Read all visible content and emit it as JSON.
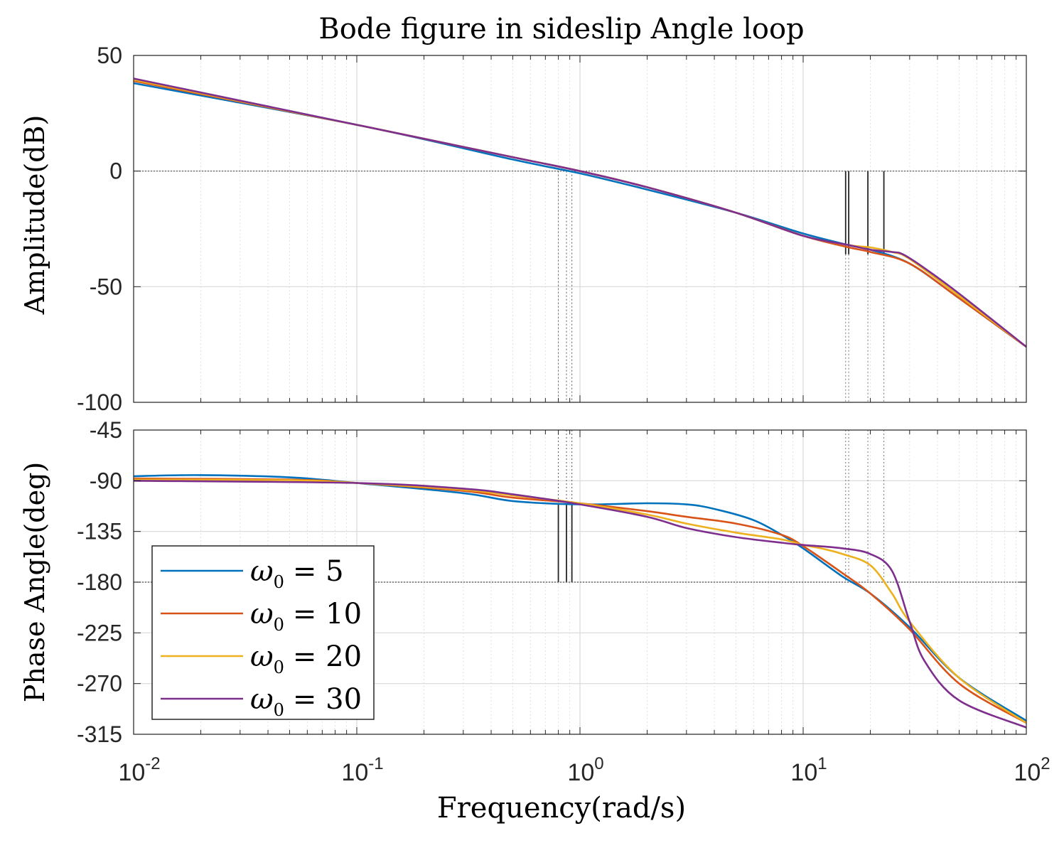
{
  "chart_data": {
    "type": "line",
    "title": "Bode figure in sideslip Angle loop",
    "xlabel": "Frequency(rad/s)",
    "xscale": "log",
    "xlim": [
      0.01,
      100
    ],
    "x_tick_labels": [
      {
        "base": "10",
        "exp": "-2"
      },
      {
        "base": "10",
        "exp": "-1"
      },
      {
        "base": "10",
        "exp": "0"
      },
      {
        "base": "10",
        "exp": "1"
      },
      {
        "base": "10",
        "exp": "2"
      }
    ],
    "grid": true,
    "legend_position": "lower-left of phase plot",
    "series_names": [
      "ω0 = 5",
      "ω0 = 10",
      "ω0 = 20",
      "ω0 = 30"
    ],
    "legend": [
      {
        "label": "ω",
        "sub": "0",
        "value": "= 5"
      },
      {
        "label": "ω",
        "sub": "0",
        "value": "= 10"
      },
      {
        "label": "ω",
        "sub": "0",
        "value": "= 20"
      },
      {
        "label": "ω",
        "sub": "0",
        "value": "= 30"
      }
    ],
    "colors": [
      "#0072bd",
      "#d95319",
      "#edb120",
      "#7e2f8e"
    ],
    "magnitude": {
      "ylabel": "Amplitude(dB)",
      "ylim": [
        -100,
        50
      ],
      "yticks": [
        "50",
        "0",
        "-50",
        "-100"
      ],
      "series": [
        {
          "name": "ω0 = 5",
          "points": [
            [
              0.01,
              38
            ],
            [
              0.1,
              20
            ],
            [
              0.5,
              5
            ],
            [
              1,
              -1
            ],
            [
              2,
              -8
            ],
            [
              5,
              -18
            ],
            [
              10,
              -27
            ],
            [
              16,
              -32
            ],
            [
              20,
              -34
            ],
            [
              30,
              -40
            ],
            [
              50,
              -55
            ],
            [
              100,
              -76
            ]
          ]
        },
        {
          "name": "ω0 = 10",
          "points": [
            [
              0.01,
              39
            ],
            [
              0.1,
              20
            ],
            [
              0.5,
              6
            ],
            [
              1,
              0
            ],
            [
              2,
              -7
            ],
            [
              5,
              -18
            ],
            [
              10,
              -28
            ],
            [
              16,
              -33
            ],
            [
              20,
              -35
            ],
            [
              30,
              -40
            ],
            [
              50,
              -55
            ],
            [
              100,
              -76
            ]
          ]
        },
        {
          "name": "ω0 = 20",
          "points": [
            [
              0.01,
              39.5
            ],
            [
              0.1,
              20
            ],
            [
              0.5,
              6
            ],
            [
              1,
              0
            ],
            [
              2,
              -7
            ],
            [
              5,
              -18
            ],
            [
              10,
              -28
            ],
            [
              16,
              -32
            ],
            [
              20,
              -33
            ],
            [
              25,
              -35
            ],
            [
              30,
              -38
            ],
            [
              50,
              -54
            ],
            [
              100,
              -76
            ]
          ]
        },
        {
          "name": "ω0 = 30",
          "points": [
            [
              0.01,
              40
            ],
            [
              0.1,
              20
            ],
            [
              0.5,
              6
            ],
            [
              1,
              0
            ],
            [
              2,
              -7
            ],
            [
              5,
              -18
            ],
            [
              10,
              -28
            ],
            [
              16,
              -32
            ],
            [
              20,
              -34
            ],
            [
              25,
              -35
            ],
            [
              28,
              -36
            ],
            [
              35,
              -42
            ],
            [
              50,
              -53
            ],
            [
              100,
              -76
            ]
          ]
        }
      ]
    },
    "phase": {
      "ylabel": "Phase Angle(deg)",
      "ylim": [
        -315,
        -45
      ],
      "yticks": [
        "-45",
        "-90",
        "-135",
        "-180",
        "-225",
        "-270",
        "-315"
      ],
      "series": [
        {
          "name": "ω0 = 5",
          "points": [
            [
              0.01,
              -86
            ],
            [
              0.02,
              -85
            ],
            [
              0.05,
              -87
            ],
            [
              0.1,
              -92
            ],
            [
              0.3,
              -101
            ],
            [
              0.5,
              -108
            ],
            [
              1,
              -111
            ],
            [
              2,
              -110
            ],
            [
              3,
              -111
            ],
            [
              4,
              -115
            ],
            [
              6,
              -125
            ],
            [
              8,
              -138
            ],
            [
              10,
              -150
            ],
            [
              15,
              -175
            ],
            [
              20,
              -190
            ],
            [
              30,
              -220
            ],
            [
              50,
              -265
            ],
            [
              100,
              -303
            ]
          ]
        },
        {
          "name": "ω0 = 10",
          "points": [
            [
              0.01,
              -88
            ],
            [
              0.05,
              -89
            ],
            [
              0.1,
              -92
            ],
            [
              0.3,
              -99
            ],
            [
              0.5,
              -105
            ],
            [
              1,
              -110
            ],
            [
              2,
              -117
            ],
            [
              3,
              -122
            ],
            [
              5,
              -128
            ],
            [
              8,
              -138
            ],
            [
              10,
              -148
            ],
            [
              15,
              -172
            ],
            [
              20,
              -190
            ],
            [
              30,
              -222
            ],
            [
              50,
              -270
            ],
            [
              100,
              -305
            ]
          ]
        },
        {
          "name": "ω0 = 20",
          "points": [
            [
              0.01,
              -89
            ],
            [
              0.05,
              -89.5
            ],
            [
              0.1,
              -92
            ],
            [
              0.3,
              -98
            ],
            [
              0.5,
              -103
            ],
            [
              1,
              -110
            ],
            [
              2,
              -120
            ],
            [
              3,
              -128
            ],
            [
              5,
              -136
            ],
            [
              8,
              -142
            ],
            [
              10,
              -147
            ],
            [
              12,
              -150
            ],
            [
              15,
              -155
            ],
            [
              20,
              -165
            ],
            [
              25,
              -190
            ],
            [
              30,
              -215
            ],
            [
              50,
              -265
            ],
            [
              100,
              -305
            ]
          ]
        },
        {
          "name": "ω0 = 30",
          "points": [
            [
              0.01,
              -90
            ],
            [
              0.1,
              -92
            ],
            [
              0.3,
              -97
            ],
            [
              0.5,
              -102
            ],
            [
              1,
              -111
            ],
            [
              2,
              -122
            ],
            [
              3,
              -132
            ],
            [
              5,
              -140
            ],
            [
              8,
              -145
            ],
            [
              10,
              -147
            ],
            [
              15,
              -150
            ],
            [
              20,
              -155
            ],
            [
              25,
              -170
            ],
            [
              30,
              -215
            ],
            [
              35,
              -250
            ],
            [
              50,
              -285
            ],
            [
              100,
              -309
            ]
          ]
        }
      ]
    },
    "margin_markers": {
      "magnitude_crossover_freqs": [
        0.8,
        0.87,
        0.92
      ],
      "phase_crossover_freqs": [
        15.5,
        16.0,
        19.5,
        23.0
      ]
    }
  }
}
